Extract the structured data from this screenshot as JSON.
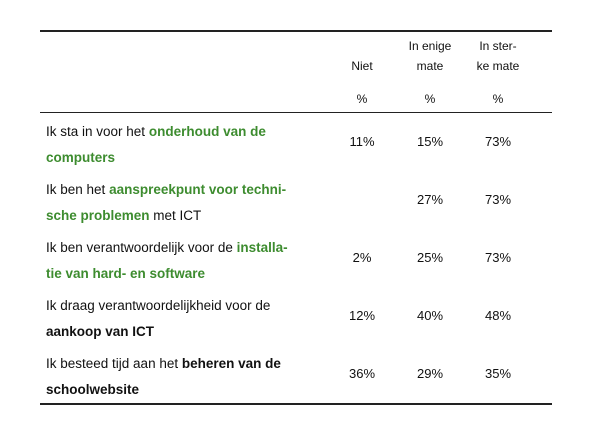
{
  "header": {
    "columns": [
      {
        "lines": [
          "Niet"
        ],
        "unit": "%"
      },
      {
        "lines": [
          "In enige",
          "mate"
        ],
        "unit": "%"
      },
      {
        "lines": [
          "In ster-",
          "ke mate"
        ],
        "unit": "%"
      }
    ]
  },
  "table": {
    "rows": [
      {
        "segments": [
          "Ik sta in voor het",
          "onderhoud van de",
          "computers"
        ],
        "values": [
          "11%",
          "15%",
          "73%"
        ]
      },
      {
        "segments": [
          "Ik ben het",
          "aanspreekpunt voor techni-",
          "sche problemen",
          "met ICT"
        ],
        "values": [
          null,
          "27%",
          "73%"
        ]
      },
      {
        "segments": [
          "Ik ben verantwoordelijk voor de",
          "installa-",
          "tie van hard- en software"
        ],
        "values": [
          "2%",
          "25%",
          "73%"
        ]
      },
      {
        "segments": [
          "Ik draag verantwoordelijkheid voor de",
          "aankoop van ICT"
        ],
        "values": [
          "12%",
          "40%",
          "48%"
        ]
      },
      {
        "segments": [
          "Ik besteed tijd aan het",
          "beheren van de",
          "schoolwebsite"
        ],
        "values": [
          "36%",
          "29%",
          "35%"
        ]
      }
    ]
  }
}
